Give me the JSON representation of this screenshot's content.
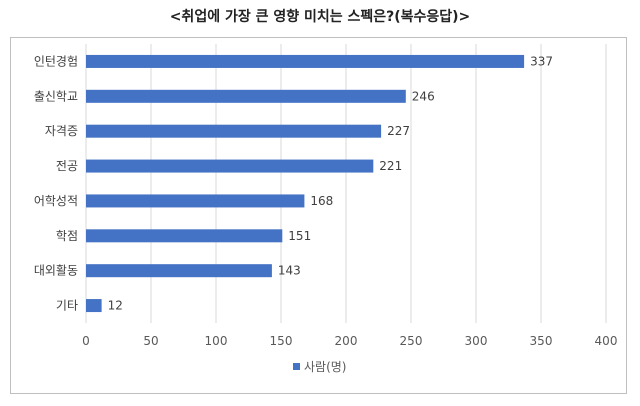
{
  "chart_data": {
    "type": "bar",
    "orientation": "horizontal",
    "title": "<취업에 가장 큰 영향 미치는 스펙은?(복수응답)>",
    "categories": [
      "인턴경험",
      "출신학교",
      "자격증",
      "전공",
      "어학성적",
      "학점",
      "대외활동",
      "기타"
    ],
    "series": [
      {
        "name": "사람(명)",
        "values": [
          337,
          246,
          227,
          221,
          168,
          151,
          143,
          12
        ]
      }
    ],
    "xlim": [
      0,
      400
    ],
    "xticks": [
      "0",
      "50",
      "100",
      "150",
      "200",
      "250",
      "300",
      "350",
      "400"
    ],
    "grid": true,
    "legend": "bottom",
    "data_labels": true,
    "bar_color": "#4472c4"
  }
}
